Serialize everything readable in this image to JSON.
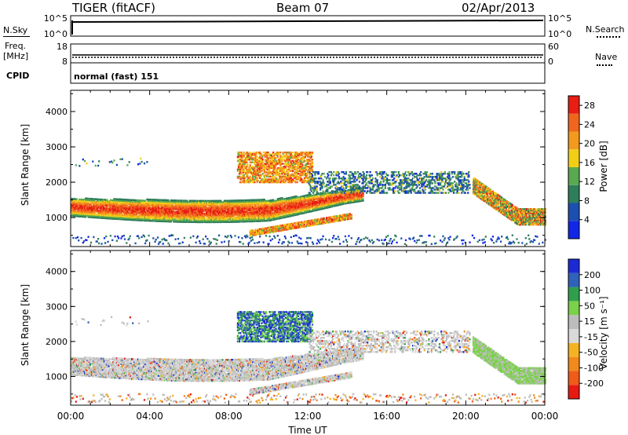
{
  "header": {
    "radar": "TIGER (fitACF)",
    "beam": "Beam 07",
    "date": "02/Apr/2013"
  },
  "panels": {
    "nsky_label": "N.Sky",
    "nsky_ticks": [
      "10^5",
      "10^0"
    ],
    "nsearch_label": "N.Search",
    "nsearch_ticks": [
      "10^5",
      "10^0"
    ],
    "freq_label": "Freq.",
    "freq_unit": "[MHz]",
    "freq_ticks": [
      "18",
      "8"
    ],
    "nave_label": "Nave",
    "nave_ticks": [
      "60",
      "0"
    ],
    "cpid_label": "CPID",
    "cpid_value": "normal (fast) 151"
  },
  "colors": {
    "power_scale": [
      "#1226e6",
      "#1c4fb0",
      "#2e7d5b",
      "#5aa850",
      "#f2cf17",
      "#f39a1e",
      "#f0661e",
      "#e81d14"
    ],
    "velocity_scale": [
      "#1c2ad6",
      "#2f62b8",
      "#2f9f4d",
      "#7bd14a",
      "#bcbcbc",
      "#d9d9d9",
      "#f5b223",
      "#f08a1c",
      "#ef5c18",
      "#e61a12"
    ]
  },
  "chart_data": [
    {
      "type": "heatmap",
      "name": "power",
      "ylabel": "Slant Range [km]",
      "xlabel": "Time UT",
      "x_ticks": [
        "00:00",
        "04:00",
        "08:00",
        "12:00",
        "16:00",
        "20:00",
        "00:00"
      ],
      "y_ticks": [
        1000,
        2000,
        3000,
        4000
      ],
      "ylim": [
        180,
        4600
      ],
      "xlim_hours": [
        0,
        24
      ],
      "colorbar_label": "Power [dB]",
      "colorbar_ticks": [
        4,
        8,
        12,
        16,
        20,
        24,
        28
      ],
      "colorbar_range": [
        0,
        30
      ],
      "features": [
        {
          "desc": "main band",
          "time_range": [
            0,
            14.5
          ],
          "slant_km": [
            1000,
            1900
          ],
          "peak_db": 26
        },
        {
          "desc": "upper cloud",
          "time_range": [
            8.5,
            12
          ],
          "slant_km": [
            2000,
            2900
          ],
          "peak_db": 20
        },
        {
          "desc": "lower streak",
          "time_range": [
            9,
            14
          ],
          "slant_km": [
            500,
            1050
          ],
          "peak_db": 24
        },
        {
          "desc": "evening band",
          "time_range": [
            20.5,
            24
          ],
          "slant_km": [
            900,
            1800
          ],
          "peak_db": 26
        }
      ]
    },
    {
      "type": "heatmap",
      "name": "velocity",
      "ylabel": "Slant Range [km]",
      "xlabel": "Time UT",
      "x_ticks": [
        "00:00",
        "04:00",
        "08:00",
        "12:00",
        "16:00",
        "20:00",
        "00:00"
      ],
      "y_ticks": [
        1000,
        2000,
        3000,
        4000
      ],
      "ylim": [
        180,
        4600
      ],
      "xlim_hours": [
        0,
        24
      ],
      "colorbar_label": "Velocity [m s⁻¹]",
      "colorbar_ticks": [
        200,
        100,
        50,
        15,
        -15,
        -50,
        -100,
        -200
      ],
      "colorbar_range": [
        -250,
        250
      ]
    }
  ]
}
